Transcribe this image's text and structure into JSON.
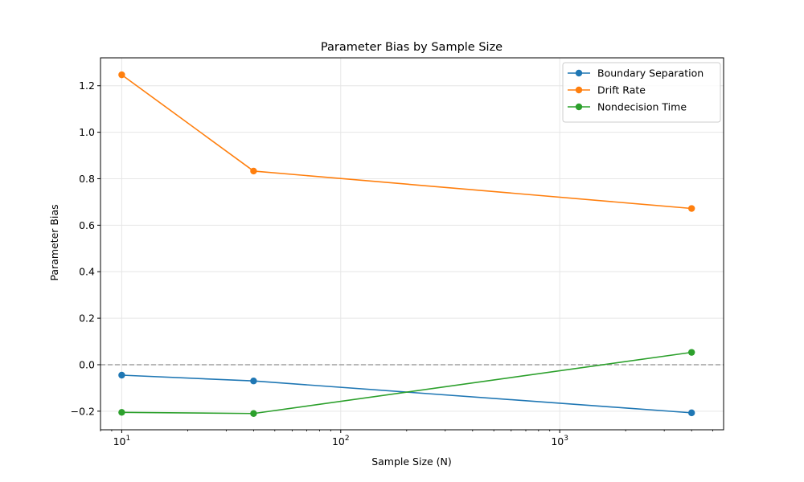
{
  "chart_data": {
    "type": "line",
    "title": "Parameter Bias by Sample Size",
    "xlabel": "Sample Size (N)",
    "ylabel": "Parameter Bias",
    "x_scale": "log",
    "x": [
      10,
      40,
      4000
    ],
    "xlim": [
      8,
      5600
    ],
    "ylim": [
      -0.28,
      1.32
    ],
    "x_ticks": [
      {
        "value": 10,
        "base": "10",
        "exp": "1"
      },
      {
        "value": 100,
        "base": "10",
        "exp": "2"
      },
      {
        "value": 1000,
        "base": "10",
        "exp": "3"
      }
    ],
    "y_ticks": [
      -0.2,
      0.0,
      0.2,
      0.4,
      0.6,
      0.8,
      1.0,
      1.2
    ],
    "y_tick_labels": [
      "−0.2",
      "0.0",
      "0.2",
      "0.4",
      "0.6",
      "0.8",
      "1.0",
      "1.2"
    ],
    "grid": true,
    "reference_line": {
      "y": 0,
      "color": "#a0a0a0",
      "style": "dashed"
    },
    "legend_placement": "top-right",
    "series": [
      {
        "name": "Boundary Separation",
        "color": "#1f77b4",
        "values": [
          -0.045,
          -0.07,
          -0.207
        ]
      },
      {
        "name": "Drift Rate",
        "color": "#ff7f0e",
        "values": [
          1.247,
          0.833,
          0.672
        ]
      },
      {
        "name": "Nondecision Time",
        "color": "#2ca02c",
        "values": [
          -0.205,
          -0.21,
          0.053
        ]
      }
    ]
  }
}
